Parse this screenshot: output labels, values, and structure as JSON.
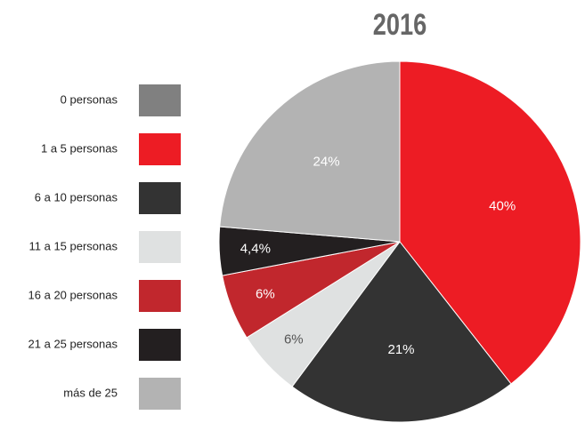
{
  "chart_data": {
    "type": "pie",
    "title": "2016",
    "categories": [
      "0 personas",
      "1 a 5 personas",
      "6 a 10 personas",
      "11 a 15 personas",
      "16 a 20 personas",
      "21 a 25 personas",
      "más de 25"
    ],
    "values": [
      0,
      40,
      21,
      6,
      6,
      4.4,
      24
    ],
    "value_labels": [
      null,
      "40%",
      "21%",
      "6%",
      "6%",
      "4,4%",
      "24%"
    ],
    "colors": [
      "#808080",
      "#ed1c24",
      "#333333",
      "#dfe1e1",
      "#c1272d",
      "#231f20",
      "#b3b3b3"
    ],
    "legend": "left"
  }
}
